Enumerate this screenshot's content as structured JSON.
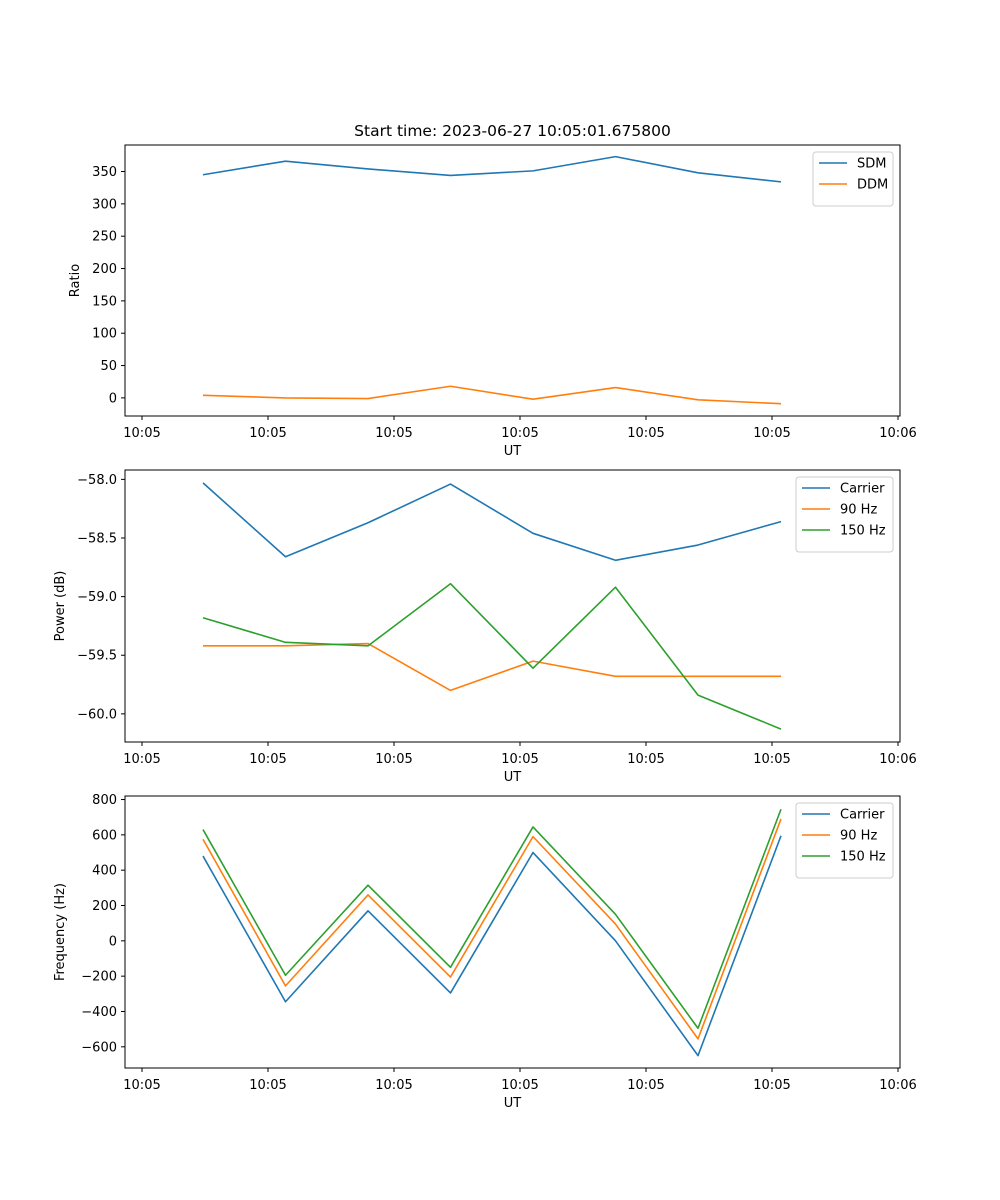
{
  "figure": {
    "title": "Start time: 2023-06-27 10:05:01.675800"
  },
  "chart_data": [
    {
      "type": "line",
      "title": "Start time: 2023-06-27 10:05:01.675800",
      "xlabel": "UT",
      "ylabel": "Ratio",
      "x_tick_labels": [
        "10:05",
        "10:05",
        "10:05",
        "10:05",
        "10:05",
        "10:05",
        "10:06"
      ],
      "y_ticks": [
        0,
        50,
        100,
        150,
        200,
        250,
        300,
        350
      ],
      "y_tick_labels": [
        "0",
        "50",
        "100",
        "150",
        "200",
        "250",
        "300",
        "350"
      ],
      "ylim": [
        -28,
        391
      ],
      "legend_position": "upper-right",
      "series": [
        {
          "name": "SDM",
          "color": "#1f77b4",
          "values": [
            345,
            366,
            354,
            344,
            351,
            373,
            348,
            334
          ]
        },
        {
          "name": "DDM",
          "color": "#ff7f0e",
          "values": [
            4,
            0,
            -1,
            18,
            -2,
            16,
            -3,
            -9
          ]
        }
      ]
    },
    {
      "type": "line",
      "xlabel": "UT",
      "ylabel": "Power (dB)",
      "x_tick_labels": [
        "10:05",
        "10:05",
        "10:05",
        "10:05",
        "10:05",
        "10:05",
        "10:06"
      ],
      "y_ticks": [
        -60.0,
        -59.5,
        -59.0,
        -58.5,
        -58.0
      ],
      "y_tick_labels": [
        "−60.0",
        "−59.5",
        "−59.0",
        "−58.5",
        "−58.0"
      ],
      "ylim": [
        -60.24,
        -57.92
      ],
      "legend_position": "upper-right",
      "series": [
        {
          "name": "Carrier",
          "color": "#1f77b4",
          "values": [
            -58.03,
            -58.66,
            -58.37,
            -58.04,
            -58.46,
            -58.69,
            -58.56,
            -58.36
          ]
        },
        {
          "name": "90 Hz",
          "color": "#ff7f0e",
          "values": [
            -59.42,
            -59.42,
            -59.4,
            -59.8,
            -59.55,
            -59.68,
            -59.68,
            -59.68
          ]
        },
        {
          "name": "150 Hz",
          "color": "#2ca02c",
          "values": [
            -59.18,
            -59.39,
            -59.42,
            -58.89,
            -59.61,
            -58.92,
            -59.84,
            -60.13
          ]
        }
      ]
    },
    {
      "type": "line",
      "xlabel": "UT",
      "ylabel": "Frequency (Hz)",
      "x_tick_labels": [
        "10:05",
        "10:05",
        "10:05",
        "10:05",
        "10:05",
        "10:05",
        "10:06"
      ],
      "y_ticks": [
        -600,
        -400,
        -200,
        0,
        200,
        400,
        600,
        800
      ],
      "y_tick_labels": [
        "−600",
        "−400",
        "−200",
        "0",
        "200",
        "400",
        "600",
        "800"
      ],
      "ylim": [
        -720,
        820
      ],
      "legend_position": "upper-right",
      "series": [
        {
          "name": "Carrier",
          "color": "#1f77b4",
          "values": [
            480,
            -345,
            170,
            -295,
            500,
            0,
            -650,
            595
          ]
        },
        {
          "name": "90 Hz",
          "color": "#ff7f0e",
          "values": [
            575,
            -255,
            260,
            -205,
            590,
            95,
            -555,
            690
          ]
        },
        {
          "name": "150 Hz",
          "color": "#2ca02c",
          "values": [
            630,
            -195,
            315,
            -150,
            645,
            150,
            -495,
            745
          ]
        }
      ]
    }
  ]
}
